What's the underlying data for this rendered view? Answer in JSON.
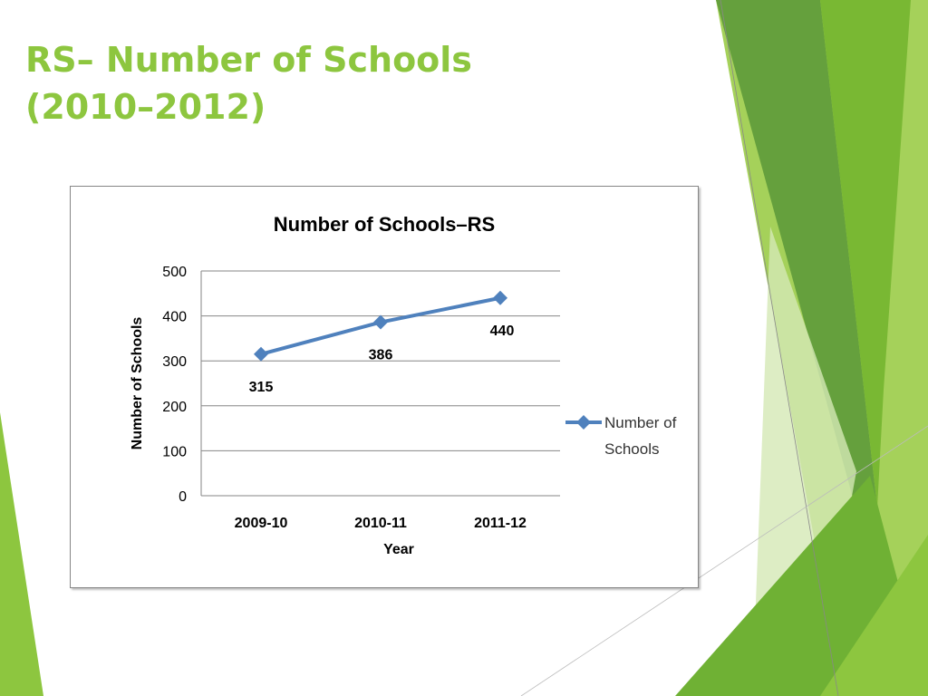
{
  "slide": {
    "title_line1": "RS– Number of Schools",
    "title_line2": "(2010–2012)",
    "title_color": "#8dc63f"
  },
  "theme": {
    "accent_light": "#c6e39d",
    "accent_mid": "#8dc63f",
    "accent_dark": "#5e9a3a"
  },
  "chart_data": {
    "type": "line",
    "title": "Number of Schools–RS",
    "xlabel": "Year",
    "ylabel": "Number of Schools",
    "categories": [
      "2009-10",
      "2010-11",
      "2011-12"
    ],
    "series": [
      {
        "name": "Number of Schools",
        "values": [
          315,
          386,
          440
        ],
        "color": "#4f81bd",
        "marker": "diamond"
      }
    ],
    "ylim": [
      0,
      500
    ],
    "yticks": [
      0,
      100,
      200,
      300,
      400,
      500
    ],
    "grid": true,
    "legend": "right",
    "legend_lines": [
      "Number of",
      "Schools"
    ]
  }
}
